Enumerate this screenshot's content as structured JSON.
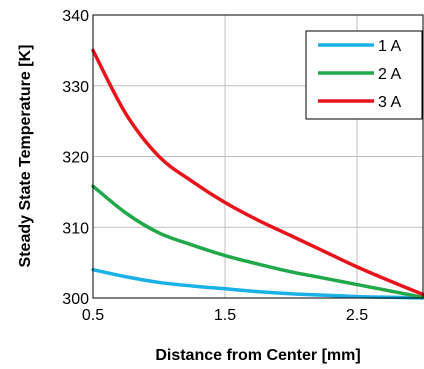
{
  "chart_data": {
    "type": "line",
    "xlabel": "Distance from Center [mm]",
    "ylabel": "Steady State Temperature [K]",
    "xlim": [
      0.5,
      3.0
    ],
    "ylim": [
      300,
      340
    ],
    "xticks": [
      0.5,
      1.5,
      2.5
    ],
    "xtick_labels": [
      "0.5",
      "1.5",
      "2.5"
    ],
    "yticks": [
      300,
      310,
      320,
      330,
      340
    ],
    "ytick_labels": [
      "300",
      "310",
      "320",
      "330",
      "340"
    ],
    "grid": true,
    "legend_position": "top-right",
    "x": [
      0.5,
      0.75,
      1.0,
      1.25,
      1.5,
      1.75,
      2.0,
      2.25,
      2.5,
      2.75,
      3.0
    ],
    "series": [
      {
        "name": "1 A",
        "color": "#1ab0e8",
        "values": [
          304.0,
          303.0,
          302.2,
          301.7,
          301.3,
          300.9,
          300.6,
          300.4,
          300.2,
          300.1,
          300.0
        ]
      },
      {
        "name": "2 A",
        "color": "#21a84a",
        "values": [
          315.8,
          312.0,
          309.2,
          307.5,
          306.0,
          304.8,
          303.7,
          302.8,
          301.9,
          301.0,
          300.1
        ]
      },
      {
        "name": "3 A",
        "color": "#e8141c",
        "values": [
          335.0,
          326.0,
          320.0,
          316.5,
          313.5,
          311.0,
          308.8,
          306.6,
          304.4,
          302.4,
          300.5
        ]
      }
    ]
  }
}
